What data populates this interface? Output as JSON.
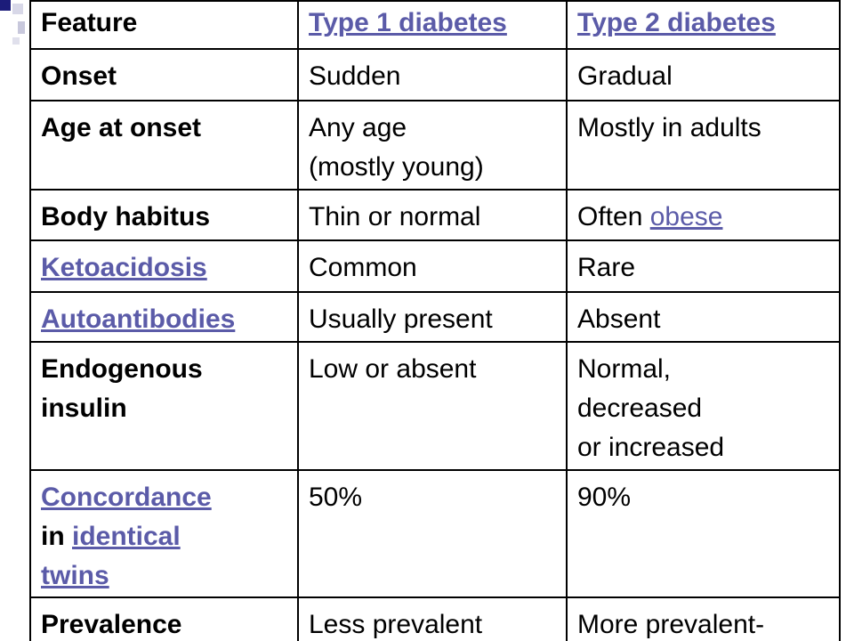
{
  "table": {
    "header": {
      "col1": "Feature",
      "col2": "Type 1 diabetes",
      "col3": "Type 2 diabetes"
    },
    "rows": [
      {
        "feature": "Onset",
        "type1": "Sudden",
        "type2": "Gradual"
      },
      {
        "feature": "Age at onset",
        "type1_line1": "Any age",
        "type1_line2": "(mostly young)",
        "type2": "Mostly in adults"
      },
      {
        "feature": "Body habitus",
        "type1": "Thin or normal",
        "type2_prefix": "Often ",
        "type2_link": "obese"
      },
      {
        "feature": "Ketoacidosis",
        "type1": "Common",
        "type2": "Rare"
      },
      {
        "feature": "Autoantibodies",
        "type1": "Usually present",
        "type2": "Absent"
      },
      {
        "feature_line1": "Endogenous",
        "feature_line2": "insulin",
        "type1": "Low or absent",
        "type2_line1": "Normal,",
        "type2_line2": "decreased",
        "type2_line3": "or increased"
      },
      {
        "feature_link1": "Concordance",
        "feature_in": "in ",
        "feature_link2": "identical",
        "feature_link3": "twins",
        "type1": "50%",
        "type2": "90%"
      },
      {
        "feature": "Prevalence",
        "type1": "Less prevalent",
        "type2": "More prevalent-"
      }
    ]
  },
  "colors": {
    "link": "#5b5ba8",
    "border": "#000000",
    "text": "#000000"
  }
}
